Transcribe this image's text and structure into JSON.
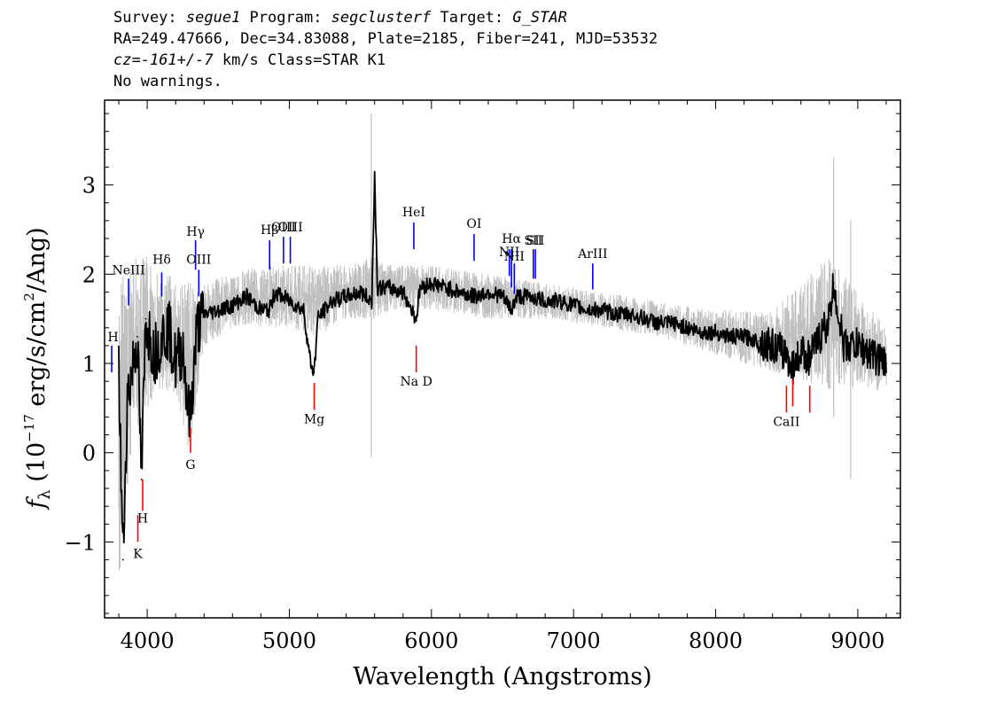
{
  "header": {
    "line1": {
      "survey_key": "Survey: ",
      "survey": "segue1",
      "program_key": " Program: ",
      "program": "segclusterf",
      "target_key": " Target: ",
      "target": "G_STAR"
    },
    "line2": "RA=249.47666, Dec=34.83088, Plate=2185, Fiber=241, MJD=53532",
    "line3": {
      "cz_key": "cz=",
      "cz": "-161+/-7",
      "rest": " km/s Class=STAR K1"
    },
    "line4": "No warnings."
  },
  "chart_data": {
    "type": "line",
    "xlabel": "Wavelength (Angstroms)",
    "ylabel": "f_λ (10^-17 erg/s/cm^2/Ang)",
    "xlim": [
      3700,
      9300
    ],
    "ylim": [
      -1.85,
      3.95
    ],
    "x_ticks": [
      "4000",
      "5000",
      "6000",
      "7000",
      "8000",
      "9000"
    ],
    "y_ticks": [
      "−1",
      "0",
      "1",
      "2",
      "3"
    ],
    "grid": false,
    "series": [
      {
        "role": "smoothed flux",
        "color": "#000000",
        "x": [
          3800,
          3830,
          3860,
          3900,
          3930,
          3960,
          3990,
          4050,
          4100,
          4150,
          4200,
          4250,
          4300,
          4350,
          4400,
          4500,
          4600,
          4700,
          4800,
          4860,
          4900,
          5000,
          5100,
          5150,
          5175,
          5200,
          5250,
          5300,
          5400,
          5500,
          5580,
          5600,
          5620,
          5700,
          5800,
          5893,
          5920,
          6000,
          6100,
          6200,
          6300,
          6400,
          6500,
          6563,
          6600,
          6700,
          6800,
          6900,
          7000,
          7100,
          7200,
          7300,
          7400,
          7500,
          7600,
          7700,
          7800,
          7900,
          8000,
          8100,
          8200,
          8300,
          8400,
          8500,
          8542,
          8600,
          8662,
          8700,
          8800,
          8830,
          8900,
          9000,
          9100,
          9200
        ],
        "y": [
          0.9,
          -1.2,
          0.6,
          1.0,
          1.3,
          -0.3,
          1.5,
          1.1,
          1.3,
          1.4,
          1.0,
          1.2,
          0.3,
          1.4,
          1.55,
          1.6,
          1.65,
          1.75,
          1.6,
          1.6,
          1.8,
          1.7,
          1.6,
          1.0,
          0.9,
          1.5,
          1.6,
          1.7,
          1.75,
          1.8,
          1.7,
          3.1,
          1.85,
          1.85,
          1.8,
          1.5,
          1.85,
          1.9,
          1.85,
          1.8,
          1.75,
          1.8,
          1.75,
          1.6,
          1.75,
          1.75,
          1.7,
          1.7,
          1.65,
          1.6,
          1.6,
          1.55,
          1.55,
          1.5,
          1.45,
          1.45,
          1.4,
          1.35,
          1.35,
          1.3,
          1.3,
          1.25,
          1.2,
          1.1,
          0.95,
          1.15,
          1.05,
          1.2,
          1.5,
          1.9,
          1.2,
          1.2,
          1.1,
          1.0
        ]
      },
      {
        "role": "unsmoothed flux (gray band)",
        "color": "#c0c0c0",
        "x": [
          3800,
          3900,
          4000,
          4100,
          4200,
          4300,
          4400,
          4600,
          4800,
          5000,
          5200,
          5400,
          5600,
          5800,
          6000,
          6400,
          6800,
          7200,
          7600,
          8000,
          8400,
          8800,
          9200
        ],
        "y_low": [
          -1.6,
          0.2,
          0.5,
          0.7,
          0.6,
          0.0,
          1.2,
          1.4,
          1.4,
          1.4,
          1.3,
          1.5,
          1.5,
          1.6,
          1.6,
          1.5,
          1.5,
          1.4,
          1.3,
          1.1,
          0.9,
          0.7,
          0.7
        ],
        "y_high": [
          2.0,
          2.2,
          2.2,
          2.0,
          2.0,
          1.9,
          1.9,
          2.0,
          2.1,
          2.1,
          2.1,
          2.1,
          2.2,
          2.1,
          2.1,
          2.0,
          1.9,
          1.8,
          1.7,
          1.6,
          1.6,
          2.2,
          1.4
        ],
        "spikes": [
          {
            "x": 5577,
            "low": -0.05,
            "high": 3.8
          },
          {
            "x": 8830,
            "low": 0.4,
            "high": 3.3
          },
          {
            "x": 8950,
            "low": -0.3,
            "high": 2.6
          }
        ]
      }
    ],
    "emission_lines": [
      {
        "label": "H",
        "x": 3750,
        "y_top": 1.2,
        "y_bot": 0.9,
        "label_y": 1.25,
        "label_x": 3760
      },
      {
        "label": "NeIII",
        "x": 3869,
        "y_top": 1.95,
        "y_bot": 1.65,
        "label_y": 2.0
      },
      {
        "label": "Hδ",
        "x": 4102,
        "y_top": 2.02,
        "y_bot": 1.75,
        "label_y": 2.12
      },
      {
        "label": "Hγ",
        "x": 4340,
        "y_top": 2.38,
        "y_bot": 2.05,
        "label_y": 2.43
      },
      {
        "label": "OIII",
        "x": 4363,
        "y_top": 2.05,
        "y_bot": 1.75,
        "label_y": 2.12
      },
      {
        "label": "Hβ",
        "x": 4861,
        "y_top": 2.38,
        "y_bot": 2.05,
        "label_y": 2.45
      },
      {
        "label": "OIII",
        "x": 4959,
        "y_top": 2.42,
        "y_bot": 2.12,
        "label_y": 2.48
      },
      {
        "label": "OIII",
        "x": 5007,
        "y_top": 2.42,
        "y_bot": 2.12,
        "label_y": 2.48
      },
      {
        "label": "HeI",
        "x": 5876,
        "y_top": 2.58,
        "y_bot": 2.28,
        "label_y": 2.65
      },
      {
        "label": "OI",
        "x": 6300,
        "y_top": 2.45,
        "y_bot": 2.15,
        "label_y": 2.52
      },
      {
        "label": "NII",
        "x": 6548,
        "y_top": 2.28,
        "y_bot": 1.98,
        "label_y": 2.2
      },
      {
        "label": "Hα",
        "x": 6563,
        "y_top": 2.28,
        "y_bot": 1.85,
        "label_y": 2.35
      },
      {
        "label": "NII",
        "x": 6583,
        "y_top": 2.12,
        "y_bot": 1.78,
        "label_y": 2.15
      },
      {
        "label": "SII",
        "x": 6717,
        "y_top": 2.28,
        "y_bot": 1.95,
        "label_y": 2.33
      },
      {
        "label": "SII",
        "x": 6731,
        "y_top": 2.28,
        "y_bot": 1.95,
        "label_y": 2.33
      },
      {
        "label": "ArIII",
        "x": 7135,
        "y_top": 2.12,
        "y_bot": 1.83,
        "label_y": 2.18
      }
    ],
    "absorption_lines": [
      {
        "label": "K",
        "x": 3934,
        "y_top": -0.7,
        "y_bot": -1.0,
        "label_y": -1.18
      },
      {
        "label": "H",
        "x": 3968,
        "y_top": -0.3,
        "y_bot": -0.65,
        "label_y": -0.78
      },
      {
        "label": "G",
        "x": 4305,
        "y_top": 0.28,
        "y_bot": 0.0,
        "label_y": -0.18
      },
      {
        "label": "Mg",
        "x": 5175,
        "y_top": 0.78,
        "y_bot": 0.48,
        "label_y": 0.33
      },
      {
        "label": "Na D",
        "x": 5893,
        "y_top": 1.2,
        "y_bot": 0.9,
        "label_y": 0.75
      },
      {
        "label": "CaII",
        "x": 8498,
        "y_top": 0.75,
        "y_bot": 0.45,
        "label_y": 0.3
      },
      {
        "label": "",
        "x": 8542,
        "y_top": 0.82,
        "y_bot": 0.52
      },
      {
        "label": "",
        "x": 8662,
        "y_top": 0.75,
        "y_bot": 0.45
      }
    ],
    "line_colors": {
      "emission": "#0000ff",
      "absorption": "#ff0000"
    }
  }
}
